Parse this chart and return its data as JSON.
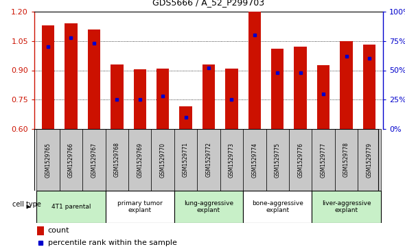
{
  "title": "GDS5666 / A_52_P299703",
  "samples": [
    "GSM1529765",
    "GSM1529766",
    "GSM1529767",
    "GSM1529768",
    "GSM1529769",
    "GSM1529770",
    "GSM1529771",
    "GSM1529772",
    "GSM1529773",
    "GSM1529774",
    "GSM1529775",
    "GSM1529776",
    "GSM1529777",
    "GSM1529778",
    "GSM1529779"
  ],
  "bar_values": [
    1.13,
    1.14,
    1.11,
    0.93,
    0.905,
    0.91,
    0.715,
    0.93,
    0.91,
    1.2,
    1.01,
    1.02,
    0.925,
    1.05,
    1.03
  ],
  "percentile_values": [
    70,
    78,
    73,
    25,
    25,
    28,
    10,
    52,
    25,
    80,
    48,
    48,
    30,
    62,
    60
  ],
  "ylim_left": [
    0.6,
    1.2
  ],
  "ylim_right": [
    0,
    100
  ],
  "yticks_left": [
    0.6,
    0.75,
    0.9,
    1.05,
    1.2
  ],
  "yticks_right": [
    0,
    25,
    50,
    75,
    100
  ],
  "bar_color": "#cc1100",
  "dot_color": "#0000cc",
  "bar_bottom": 0.6,
  "cell_type_groups": [
    {
      "label": "4T1 parental",
      "start": 0,
      "end": 3,
      "color": "#c8f0c8"
    },
    {
      "label": "primary tumor\nexplant",
      "start": 3,
      "end": 6,
      "color": "#ffffff"
    },
    {
      "label": "lung-aggressive\nexplant",
      "start": 6,
      "end": 9,
      "color": "#c8f0c8"
    },
    {
      "label": "bone-aggressive\nexplant",
      "start": 9,
      "end": 12,
      "color": "#ffffff"
    },
    {
      "label": "liver-aggressive\nexplant",
      "start": 12,
      "end": 15,
      "color": "#c8f0c8"
    }
  ],
  "legend_count_label": "count",
  "legend_percentile_label": "percentile rank within the sample",
  "sample_bg_color": "#c8c8c8",
  "plot_bg_color": "#ffffff",
  "fig_width": 5.9,
  "fig_height": 3.63
}
